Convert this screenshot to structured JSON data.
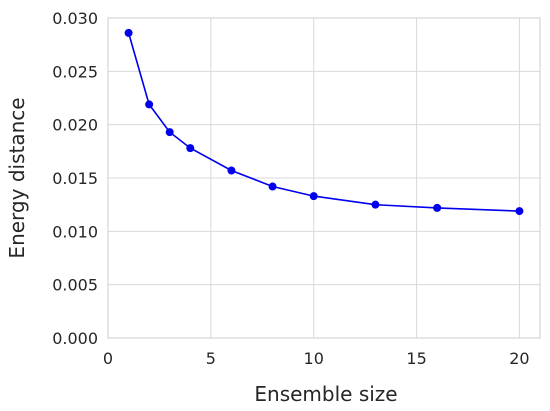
{
  "chart_data": {
    "type": "line",
    "title": "",
    "xlabel": "Ensemble size",
    "ylabel": "Energy distance",
    "x": [
      1,
      2,
      3,
      4,
      6,
      8,
      10,
      13,
      16,
      20
    ],
    "series": [
      {
        "values": [
          0.0286,
          0.0219,
          0.0193,
          0.0178,
          0.0157,
          0.0142,
          0.0133,
          0.0125,
          0.0122,
          0.0119
        ]
      }
    ],
    "xlim": [
      0,
      21
    ],
    "ylim": [
      0,
      0.03
    ],
    "xticks": [
      0,
      5,
      10,
      15,
      20
    ],
    "xtick_labels": [
      "0",
      "5",
      "10",
      "15",
      "20"
    ],
    "yticks": [
      0,
      0.005,
      0.01,
      0.015,
      0.02,
      0.025,
      0.03
    ],
    "ytick_labels": [
      "0.000",
      "0.005",
      "0.010",
      "0.015",
      "0.020",
      "0.025",
      "0.030"
    ],
    "grid": true,
    "legend": "none",
    "colors": {
      "line": "#0000ee",
      "grid": "#d9d9d9",
      "frame": "#cccccc",
      "text": "#262626"
    }
  }
}
